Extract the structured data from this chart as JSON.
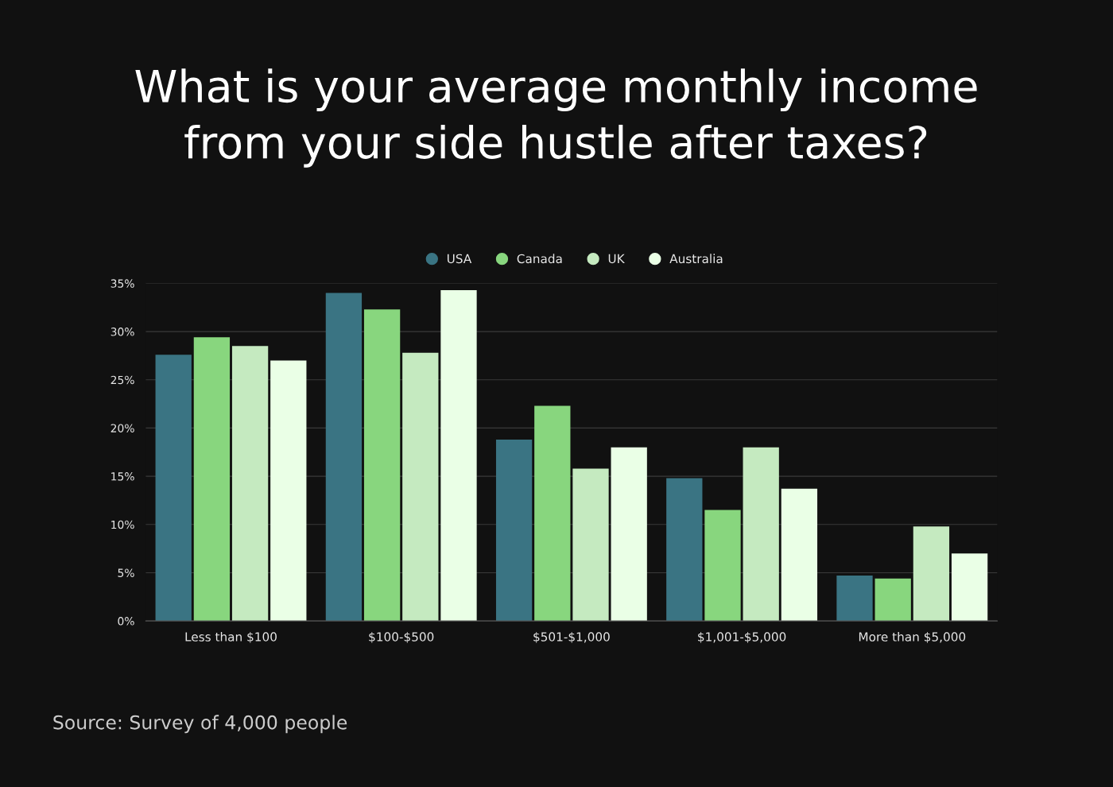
{
  "chart_data": {
    "type": "bar",
    "title": "What is your average monthly income\nfrom your side hustle after taxes?",
    "categories": [
      "Less than $100",
      "$100-$500",
      "$501-$1,000",
      "$1,001-$5,000",
      "More than $5,000"
    ],
    "series": [
      {
        "name": "USA",
        "color": "#3a7483",
        "values": [
          27.6,
          34.0,
          18.8,
          14.8,
          4.7
        ]
      },
      {
        "name": "Canada",
        "color": "#88d67e",
        "values": [
          29.4,
          32.3,
          22.3,
          11.5,
          4.4
        ]
      },
      {
        "name": "UK",
        "color": "#c5eac0",
        "values": [
          28.5,
          27.8,
          15.8,
          18.0,
          9.8
        ]
      },
      {
        "name": "Australia",
        "color": "#eaffe6",
        "values": [
          27.0,
          34.3,
          18.0,
          13.7,
          7.0
        ]
      }
    ],
    "ylim": [
      0,
      35
    ],
    "yticks": [
      {
        "value": 0,
        "label": "0%"
      },
      {
        "value": 5,
        "label": "5%"
      },
      {
        "value": 10,
        "label": "10%"
      },
      {
        "value": 15,
        "label": "15%"
      },
      {
        "value": 20,
        "label": "20%"
      },
      {
        "value": 25,
        "label": "25%"
      },
      {
        "value": 30,
        "label": "30%"
      },
      {
        "value": 35,
        "label": "35%"
      }
    ],
    "grid": "y",
    "legend": "top",
    "marker": "circle",
    "annotations": [
      "Source: Survey of 4,000 people"
    ]
  }
}
